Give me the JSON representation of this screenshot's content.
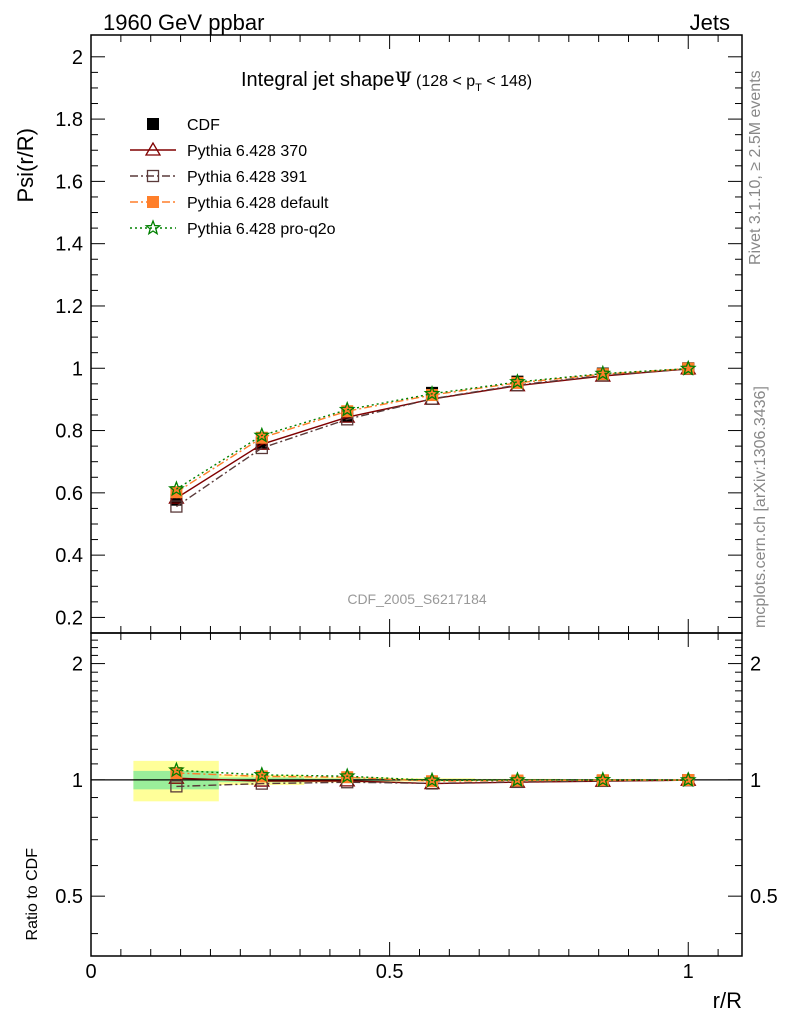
{
  "header": {
    "left": "1960 GeV ppbar",
    "right": "Jets"
  },
  "side_text": {
    "top": "Rivet 3.1.10, ≥ 2.5M events",
    "bottom": "mcplots.cern.ch [arXiv:1306.3436]"
  },
  "chart_data": [
    {
      "type": "line",
      "title_main": "Integral jet shape",
      "title_symbol": "Ψ",
      "title_range": "(128 < p",
      "title_range_sub": "T",
      "title_range_end": " < 148)",
      "ylabel": "Psi(r/R)",
      "watermark": "CDF_2005_S6217184",
      "xlim": [
        0,
        1.09
      ],
      "ylim": [
        0.15,
        2.07
      ],
      "y_ticks": [
        "0.2",
        "0.4",
        "0.6",
        "0.8",
        "1",
        "1.2",
        "1.4",
        "1.6",
        "1.8",
        "2"
      ],
      "grid": false,
      "legend_position": "top-left",
      "x": [
        0.143,
        0.286,
        0.429,
        0.571,
        0.714,
        0.857,
        1.0
      ],
      "series": [
        {
          "name": "CDF",
          "values": [
            0.578,
            0.761,
            0.848,
            0.921,
            0.957,
            0.983,
            1.0
          ],
          "color": "#000000",
          "marker": "square-filled",
          "line": "none"
        },
        {
          "name": "Pythia 6.428 370",
          "values": [
            0.583,
            0.756,
            0.843,
            0.901,
            0.944,
            0.975,
            0.998
          ],
          "color": "#800000",
          "marker": "triangle-open",
          "line": "solid"
        },
        {
          "name": "Pythia 6.428 391",
          "values": [
            0.556,
            0.744,
            0.836,
            0.902,
            0.946,
            0.977,
            0.998
          ],
          "color": "#5a3a3a",
          "marker": "square-open",
          "line": "dashdot"
        },
        {
          "name": "Pythia 6.428 default",
          "values": [
            0.602,
            0.777,
            0.862,
            0.914,
            0.953,
            0.981,
            0.999
          ],
          "color": "#ff7f2a",
          "marker": "square-filled",
          "line": "dashdot"
        },
        {
          "name": "Pythia 6.428 pro-q2o",
          "values": [
            0.612,
            0.784,
            0.867,
            0.918,
            0.956,
            0.983,
            0.999
          ],
          "color": "#008000",
          "marker": "star",
          "line": "dotted"
        }
      ]
    },
    {
      "type": "line",
      "ylabel": "Ratio to CDF",
      "xlabel": "r/R",
      "xlim": [
        0,
        1.09
      ],
      "ylim": [
        0.35,
        2.4
      ],
      "y_scale": "log",
      "y_ticks": [
        "0.5",
        "1",
        "2"
      ],
      "x_ticks": [
        "0",
        "0.5",
        "1"
      ],
      "grid": false,
      "x": [
        0.143,
        0.286,
        0.429,
        0.571,
        0.714,
        0.857,
        1.0
      ],
      "uncertainty_bands": {
        "x_edges": [
          0.071,
          0.214,
          0.357,
          0.5,
          0.643,
          0.786,
          0.929,
          1.071
        ],
        "inner": [
          0.055,
          0.014,
          0.008,
          0.005,
          0.003,
          0.002,
          0.001
        ],
        "outer": [
          0.12,
          0.03,
          0.015,
          0.01,
          0.006,
          0.004,
          0.002
        ],
        "inner_color": "#9aee9a",
        "outer_color": "#ffff99"
      },
      "series": [
        {
          "name": "Pythia 6.428 370",
          "values": [
            1.01,
            0.993,
            0.994,
            0.978,
            0.986,
            0.992,
            0.998
          ],
          "color": "#800000",
          "marker": "triangle-open",
          "line": "solid"
        },
        {
          "name": "Pythia 6.428 391",
          "values": [
            0.962,
            0.978,
            0.986,
            0.979,
            0.988,
            0.994,
            0.998
          ],
          "color": "#5a3a3a",
          "marker": "square-open",
          "line": "dashdot"
        },
        {
          "name": "Pythia 6.428 default",
          "values": [
            1.042,
            1.021,
            1.016,
            0.992,
            0.996,
            0.998,
            0.999
          ],
          "color": "#ff7f2a",
          "marker": "square-filled",
          "line": "dashdot"
        },
        {
          "name": "Pythia 6.428 pro-q2o",
          "values": [
            1.059,
            1.03,
            1.022,
            0.997,
            0.999,
            1.0,
            0.999
          ],
          "color": "#008000",
          "marker": "star",
          "line": "dotted"
        }
      ]
    }
  ]
}
